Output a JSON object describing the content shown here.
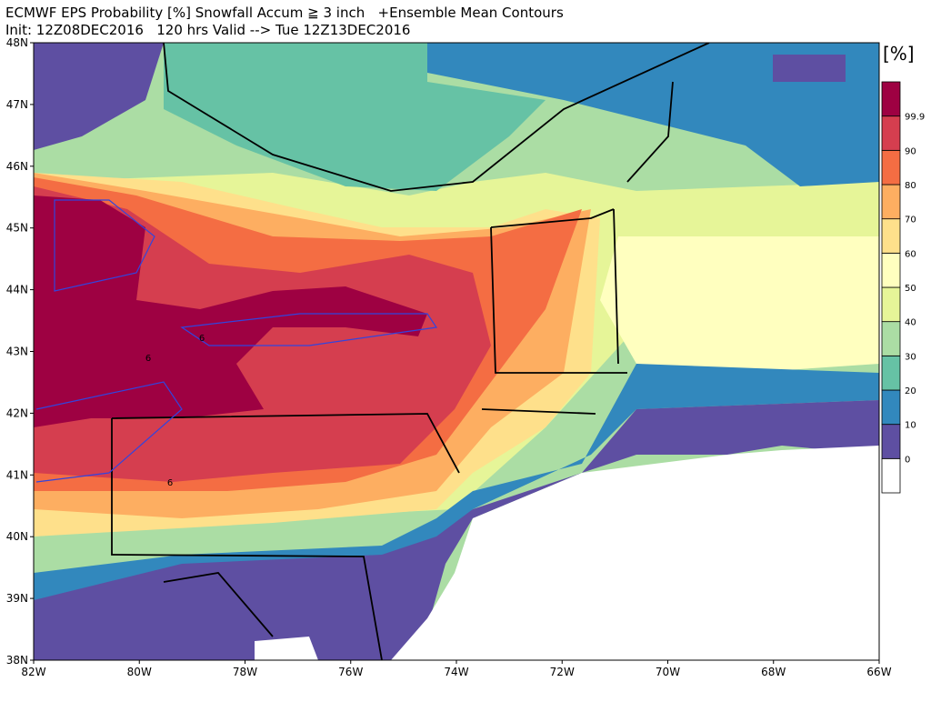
{
  "header": {
    "title": "ECMWF EPS Probability [%] Snowfall Accum ≧ 3 inch   +Ensemble Mean Contours",
    "subtitle": "Init: 12Z08DEC2016   120 hrs Valid --> Tue 12Z13DEC2016"
  },
  "map": {
    "lat_ticks": [
      "38N",
      "39N",
      "40N",
      "41N",
      "42N",
      "43N",
      "44N",
      "45N",
      "46N",
      "47N",
      "48N"
    ],
    "lon_ticks": [
      "82W",
      "80W",
      "78W",
      "76W",
      "74W",
      "72W",
      "70W",
      "68W",
      "66W"
    ],
    "contour_labels": [
      6,
      6,
      6
    ]
  },
  "colorbar": {
    "unit": "[%]",
    "levels": [
      0,
      10,
      20,
      30,
      40,
      50,
      60,
      70,
      80,
      90,
      99.9
    ],
    "colors": [
      "#ffffff",
      "#5e4fa2",
      "#3288bd",
      "#66c2a5",
      "#abdda4",
      "#e6f598",
      "#ffffbf",
      "#fee08b",
      "#fdae61",
      "#f46d43",
      "#d53e4f",
      "#9e0142"
    ]
  }
}
